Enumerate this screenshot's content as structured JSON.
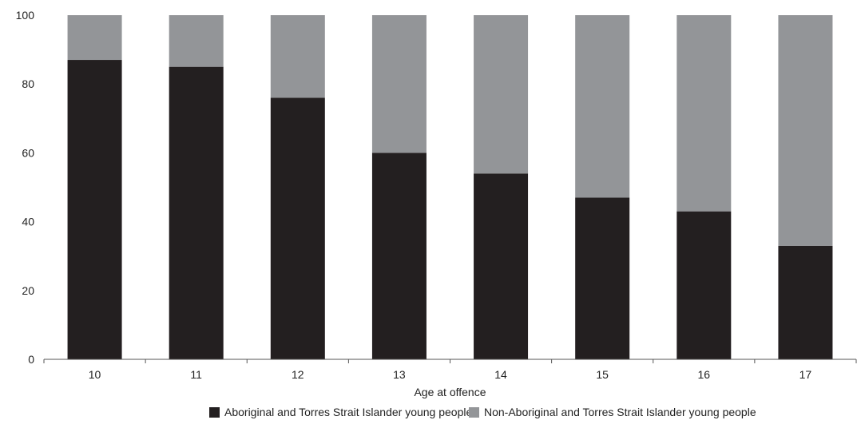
{
  "chart_data": {
    "type": "bar",
    "stacked": true,
    "categories": [
      "10",
      "11",
      "12",
      "13",
      "14",
      "15",
      "16",
      "17"
    ],
    "series": [
      {
        "name": "Aboriginal and Torres Strait Islander young people",
        "color": "#231f20",
        "values": [
          87,
          85,
          76,
          60,
          54,
          47,
          43,
          33
        ]
      },
      {
        "name": "Non-Aboriginal and Torres Strait Islander young people",
        "color": "#939598",
        "values": [
          13,
          15,
          24,
          40,
          46,
          53,
          57,
          67
        ]
      }
    ],
    "title": "",
    "xlabel": "Age at offence",
    "ylabel": "",
    "ylim": [
      0,
      100
    ],
    "yticks": [
      "0",
      "20",
      "40",
      "60",
      "80",
      "100"
    ],
    "grid": false,
    "legend_position": "bottom"
  }
}
